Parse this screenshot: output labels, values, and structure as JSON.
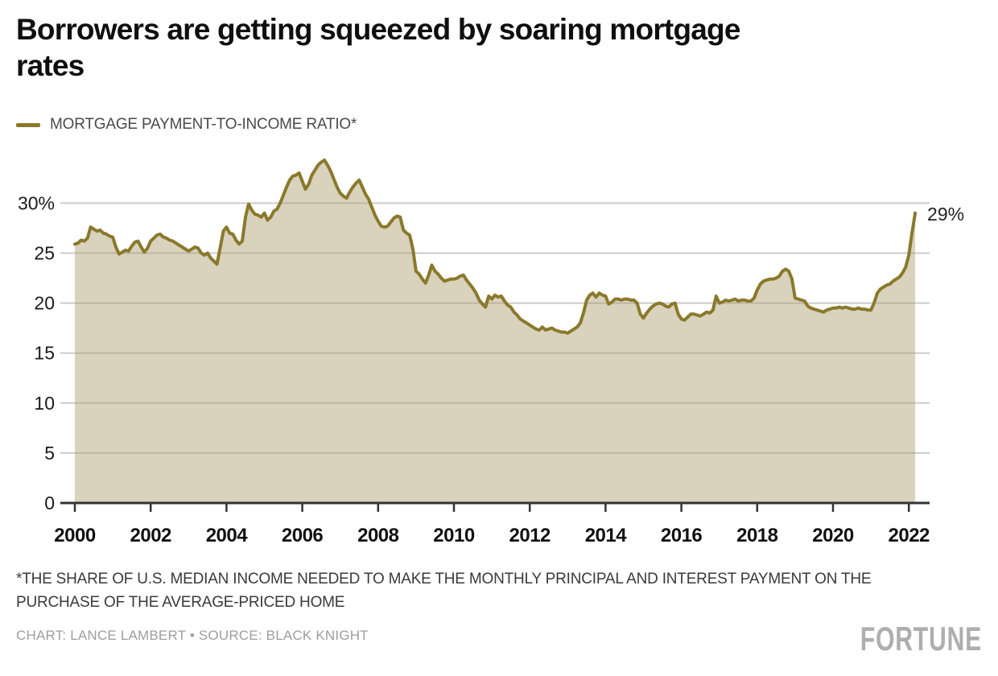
{
  "header": {
    "title_line1": "Borrowers are getting squeezed by soaring mortgage",
    "title_line2": "rates"
  },
  "legend": {
    "label": "MORTGAGE PAYMENT-TO-INCOME RATIO*",
    "swatch_color": "#8a792b"
  },
  "footnote": {
    "line1": "*THE SHARE OF U.S. MEDIAN INCOME NEEDED TO MAKE THE MONTHLY PRINCIPAL AND INTEREST PAYMENT ON THE",
    "line2": "PURCHASE OF THE AVERAGE-PRICED HOME"
  },
  "credit": {
    "text": "CHART: LANCE LAMBERT • SOURCE: BLACK KNIGHT"
  },
  "brand": {
    "logo_text": "FORTUNE"
  },
  "chart_data": {
    "type": "area",
    "title": "Borrowers are getting squeezed by soaring mortgage rates",
    "xlabel": "",
    "ylabel": "",
    "unit": "%",
    "grid": true,
    "legend_position": "top-left",
    "xlim": [
      2000,
      2022.6
    ],
    "ylim": [
      0,
      35
    ],
    "x_ticks": [
      2000,
      2002,
      2004,
      2006,
      2008,
      2010,
      2012,
      2014,
      2016,
      2018,
      2020,
      2022
    ],
    "y_ticks": [
      0,
      5,
      10,
      15,
      20,
      25,
      30
    ],
    "y_tick_labels": [
      "0",
      "5",
      "10",
      "15",
      "20",
      "25",
      "30%"
    ],
    "end_label": "29%",
    "colors": {
      "line": "#8a792b",
      "fill": "#d9d2bc",
      "grid": "#cbcbcb",
      "axis": "#333333"
    },
    "series": [
      {
        "name": "Mortgage payment-to-income ratio",
        "start_year": 2000,
        "interval": "monthly",
        "values": [
          25.9,
          26.0,
          26.3,
          26.2,
          26.5,
          27.6,
          27.4,
          27.2,
          27.3,
          27.0,
          26.9,
          26.7,
          26.6,
          25.6,
          24.9,
          25.1,
          25.3,
          25.2,
          25.7,
          26.1,
          26.2,
          25.6,
          25.1,
          25.5,
          26.2,
          26.5,
          26.8,
          26.9,
          26.6,
          26.5,
          26.3,
          26.2,
          26.0,
          25.8,
          25.6,
          25.4,
          25.2,
          25.4,
          25.6,
          25.5,
          25.0,
          24.8,
          25.0,
          24.5,
          24.2,
          23.9,
          25.5,
          27.2,
          27.6,
          27.0,
          26.9,
          26.3,
          25.9,
          26.2,
          28.6,
          29.9,
          29.3,
          28.9,
          28.8,
          28.6,
          29.0,
          28.3,
          28.6,
          29.2,
          29.4,
          30.0,
          30.8,
          31.6,
          32.3,
          32.7,
          32.8,
          33.0,
          32.2,
          31.4,
          31.9,
          32.8,
          33.3,
          33.8,
          34.1,
          34.3,
          33.8,
          33.2,
          32.4,
          31.6,
          31.0,
          30.7,
          30.5,
          31.1,
          31.6,
          32.0,
          32.3,
          31.6,
          30.9,
          30.4,
          29.6,
          28.8,
          28.2,
          27.7,
          27.6,
          27.7,
          28.1,
          28.5,
          28.7,
          28.6,
          27.3,
          27.0,
          26.8,
          25.4,
          23.2,
          22.9,
          22.4,
          22.0,
          22.8,
          23.8,
          23.2,
          22.9,
          22.5,
          22.2,
          22.3,
          22.4,
          22.4,
          22.5,
          22.7,
          22.8,
          22.3,
          21.9,
          21.5,
          21.0,
          20.3,
          19.9,
          19.6,
          20.7,
          20.4,
          20.8,
          20.6,
          20.7,
          20.2,
          19.8,
          19.6,
          19.1,
          18.8,
          18.4,
          18.2,
          18.0,
          17.8,
          17.6,
          17.4,
          17.3,
          17.6,
          17.3,
          17.4,
          17.5,
          17.3,
          17.2,
          17.1,
          17.1,
          17.0,
          17.2,
          17.4,
          17.6,
          18.0,
          19.0,
          20.3,
          20.8,
          21.0,
          20.6,
          21.0,
          20.8,
          20.7,
          19.9,
          20.1,
          20.4,
          20.4,
          20.3,
          20.4,
          20.4,
          20.3,
          20.3,
          20.0,
          18.9,
          18.5,
          19.0,
          19.4,
          19.7,
          19.9,
          20.0,
          19.9,
          19.7,
          19.6,
          19.9,
          20.0,
          18.9,
          18.4,
          18.3,
          18.6,
          18.9,
          18.9,
          18.8,
          18.7,
          18.9,
          19.1,
          19.0,
          19.3,
          20.7,
          20.0,
          20.1,
          20.3,
          20.2,
          20.3,
          20.4,
          20.2,
          20.3,
          20.3,
          20.2,
          20.2,
          20.5,
          21.3,
          21.9,
          22.2,
          22.3,
          22.4,
          22.4,
          22.5,
          22.7,
          23.2,
          23.4,
          23.2,
          22.4,
          20.5,
          20.4,
          20.3,
          20.2,
          19.7,
          19.5,
          19.4,
          19.3,
          19.2,
          19.1,
          19.3,
          19.4,
          19.5,
          19.5,
          19.6,
          19.5,
          19.6,
          19.5,
          19.4,
          19.4,
          19.5,
          19.4,
          19.4,
          19.3,
          19.3,
          20.0,
          21.0,
          21.4,
          21.6,
          21.8,
          21.9,
          22.2,
          22.4,
          22.6,
          23.0,
          23.6,
          24.8,
          27.0,
          29.0
        ]
      }
    ]
  }
}
